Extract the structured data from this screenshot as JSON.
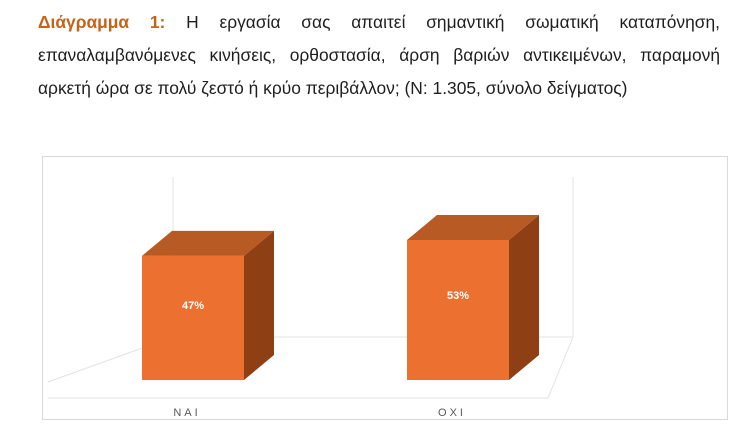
{
  "caption": {
    "lead": "Διάγραμμα 1:",
    "text": " Η εργασία σας απαιτεί σημαντική σωματική καταπόνηση, επαναλαμβανόμενες κινήσεις, ορθοστασία, άρση βαριών αντικειμένων, παραμονή αρκετή ώρα σε πολύ ζεστό ή κρύο περιβάλλον; (N: 1.305, σύνολο δείγματος)"
  },
  "chart_data": {
    "type": "bar",
    "style": "3d-column",
    "categories": [
      "ΝΑΙ",
      "ΟΧΙ"
    ],
    "values": [
      47,
      53
    ],
    "data_labels": [
      "47%",
      "53%"
    ],
    "unit": "%",
    "grid": false,
    "legend": "none",
    "colors": {
      "front": "#ec7030",
      "top": "#b85a23",
      "side": "#8f3f14"
    }
  }
}
